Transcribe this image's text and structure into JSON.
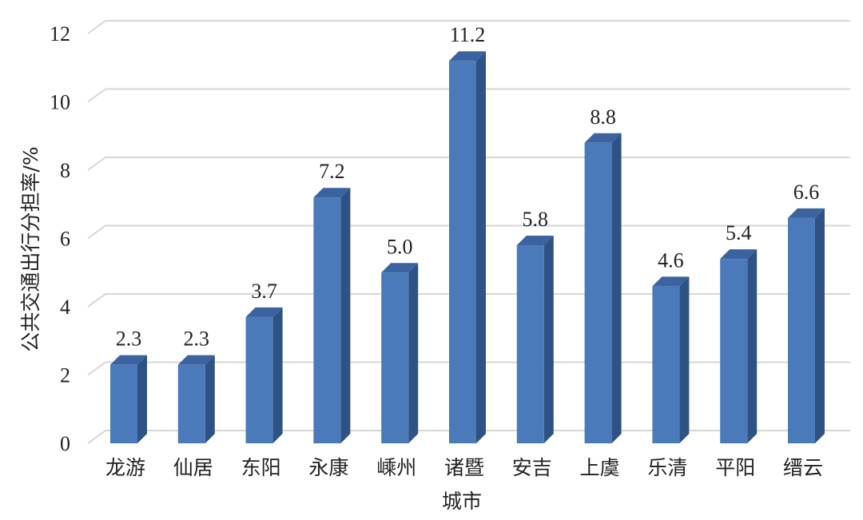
{
  "chart_data": {
    "type": "bar",
    "style": "3d-column",
    "categories": [
      "龙游",
      "仙居",
      "东阳",
      "永康",
      "嵊州",
      "诸暨",
      "安吉",
      "上虞",
      "乐清",
      "平阳",
      "缙云"
    ],
    "values": [
      2.3,
      2.3,
      3.7,
      7.2,
      5.0,
      11.2,
      5.8,
      8.8,
      4.6,
      5.4,
      6.6
    ],
    "value_labels": [
      "2.3",
      "2.3",
      "3.7",
      "7.2",
      "5.0",
      "11.2",
      "5.8",
      "8.8",
      "4.6",
      "5.4",
      "6.6"
    ],
    "title": "",
    "xlabel": "城市",
    "ylabel": "公共交通出行分担率/%",
    "ylim": [
      0,
      12
    ],
    "yticks": [
      0,
      2,
      4,
      6,
      8,
      10,
      12
    ],
    "grid": true,
    "legend": "none",
    "colors": {
      "bar_front": "#4a7ab9",
      "bar_side": "#2e5283",
      "bar_top": "#3b63a0",
      "grid": "#d6d6d6"
    }
  }
}
